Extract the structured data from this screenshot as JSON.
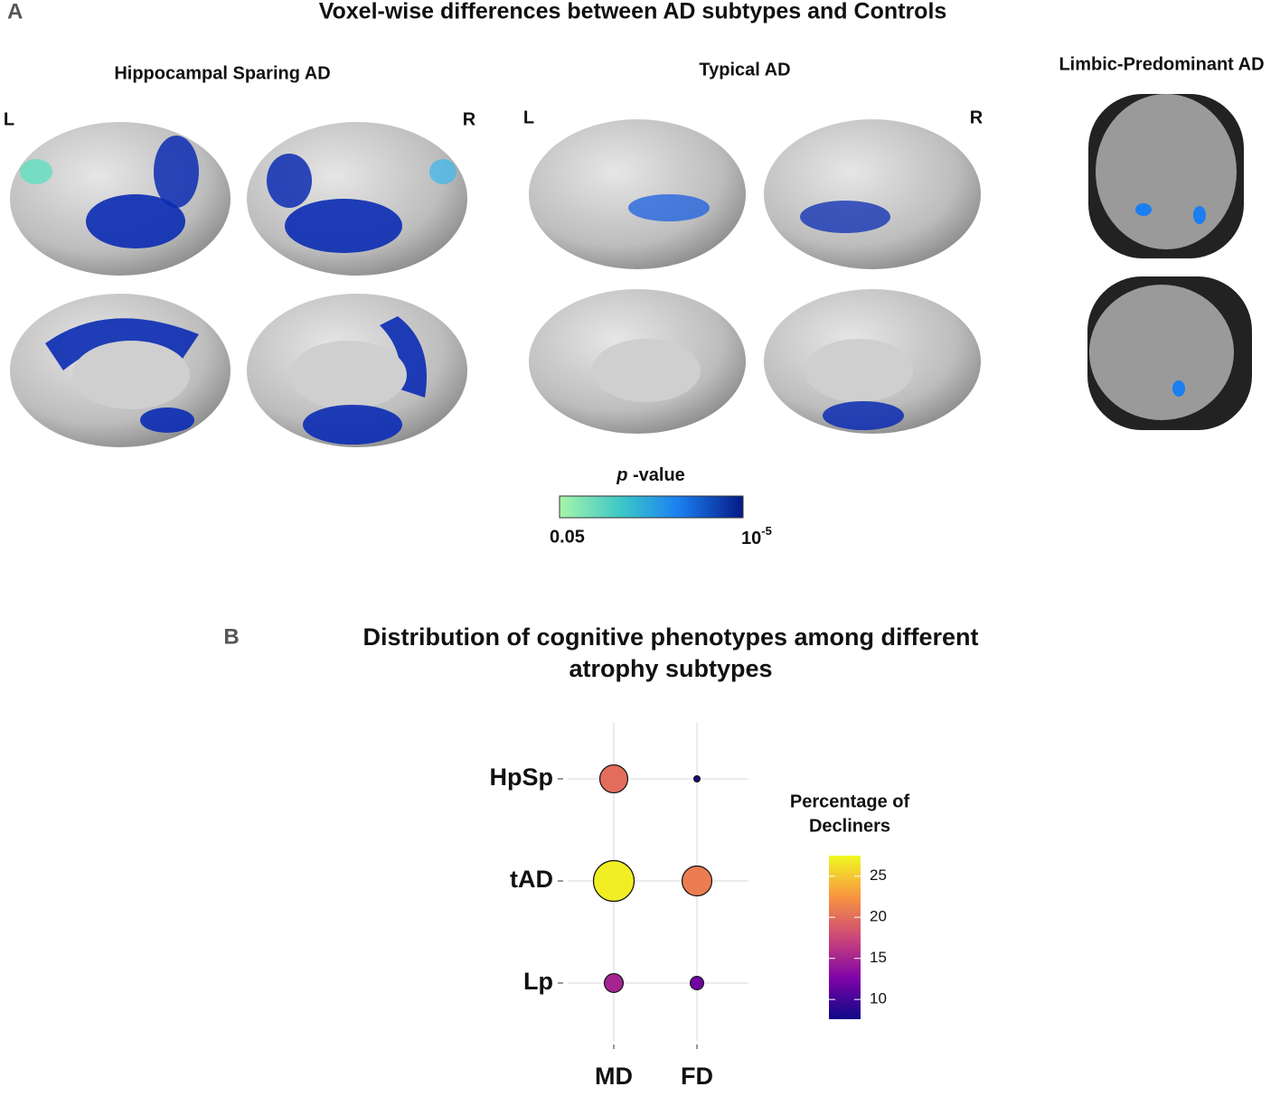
{
  "panel_a": {
    "label": "A",
    "title": "Voxel-wise differences between AD subtypes and Controls",
    "groups": [
      {
        "title": "Hippocampal Sparing AD",
        "left": "L",
        "right": "R"
      },
      {
        "title": "Typical AD",
        "left": "L",
        "right": "R"
      },
      {
        "title": "Limbic-Predominant AD"
      }
    ],
    "colorbar": {
      "title_italic": "p",
      "title_rest": "-value",
      "low": "0.05",
      "high_base": "10",
      "high_exp": "-5"
    }
  },
  "chart_data": {
    "type": "bubble",
    "panel_label": "B",
    "title": [
      "Distribution of cognitive phenotypes among different",
      "atrophy subtypes"
    ],
    "x_categories": [
      "MD",
      "FD"
    ],
    "y_categories": [
      "HpSp",
      "tAD",
      "Lp"
    ],
    "values": [
      [
        20,
        8
      ],
      [
        27,
        21
      ],
      [
        15,
        12
      ]
    ],
    "legend_title": [
      "Percentage of",
      "Decliners"
    ],
    "colormap": "plasma",
    "clim": [
      7.6,
      27.5
    ],
    "cticks": [
      10,
      15,
      20,
      25
    ],
    "grid": true
  }
}
